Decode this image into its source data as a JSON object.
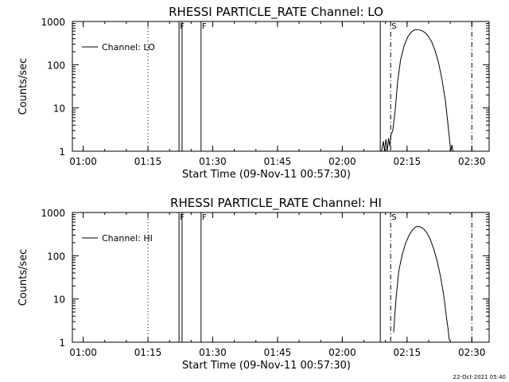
{
  "footer": {
    "timestamp": "22-Oct-2021 05:40"
  },
  "chart_data": [
    {
      "type": "line",
      "title": "RHESSI PARTICLE_RATE Channel: LO",
      "xlabel": "Start Time (09-Nov-11 00:57:30)",
      "ylabel": "Counts/sec",
      "x_unit": "minutes since 00:57:30",
      "xlim": [
        0,
        96.5
      ],
      "ylim": [
        1,
        1000
      ],
      "yscale": "log",
      "xticks": [
        {
          "label": "01:00",
          "value": 2.5
        },
        {
          "label": "01:15",
          "value": 17.5
        },
        {
          "label": "01:30",
          "value": 32.5
        },
        {
          "label": "01:45",
          "value": 47.5
        },
        {
          "label": "02:00",
          "value": 62.5
        },
        {
          "label": "02:15",
          "value": 77.5
        },
        {
          "label": "02:30",
          "value": 92.5
        }
      ],
      "yticks": [
        {
          "label": "1000",
          "value": 1000
        },
        {
          "label": "100",
          "value": 100
        },
        {
          "label": "10",
          "value": 10
        },
        {
          "label": "1",
          "value": 1
        }
      ],
      "legend": {
        "label": "Channel: LO",
        "position": "top-left"
      },
      "markers": [
        {
          "x": 17.5,
          "style": "dotted",
          "label": ""
        },
        {
          "x": 24.7,
          "style": "solid",
          "label": "F"
        },
        {
          "x": 25.4,
          "style": "solid",
          "label": ""
        },
        {
          "x": 29.8,
          "style": "solid",
          "label": "F"
        },
        {
          "x": 71.3,
          "style": "solid",
          "label": ""
        },
        {
          "x": 73.7,
          "style": "dashdot",
          "label": "S"
        },
        {
          "x": 92.5,
          "style": "dashdot",
          "label": ""
        }
      ],
      "series": [
        {
          "name": "Channel: LO",
          "points": [
            [
              71.6,
              1.0
            ],
            [
              72.0,
              1.7
            ],
            [
              72.3,
              1.0
            ],
            [
              72.6,
              1.9
            ],
            [
              72.9,
              1.0
            ],
            [
              73.2,
              2.0
            ],
            [
              73.5,
              1.3
            ],
            [
              73.8,
              2.4
            ],
            [
              74.2,
              3.0
            ],
            [
              74.8,
              10
            ],
            [
              75.3,
              40
            ],
            [
              76.0,
              130
            ],
            [
              76.8,
              270
            ],
            [
              77.6,
              430
            ],
            [
              78.4,
              560
            ],
            [
              79.2,
              640
            ],
            [
              80.0,
              650
            ],
            [
              80.8,
              620
            ],
            [
              81.6,
              560
            ],
            [
              82.4,
              460
            ],
            [
              83.2,
              340
            ],
            [
              84.0,
              210
            ],
            [
              84.8,
              110
            ],
            [
              85.6,
              45
            ],
            [
              86.4,
              14
            ],
            [
              87.0,
              4
            ],
            [
              87.4,
              1.6
            ],
            [
              87.6,
              1.0
            ],
            [
              87.9,
              1.4
            ],
            [
              88.1,
              1.0
            ]
          ]
        }
      ]
    },
    {
      "type": "line",
      "title": "RHESSI PARTICLE_RATE Channel: HI",
      "xlabel": "Start Time (09-Nov-11 00:57:30)",
      "ylabel": "Counts/sec",
      "x_unit": "minutes since 00:57:30",
      "xlim": [
        0,
        96.5
      ],
      "ylim": [
        1,
        1000
      ],
      "yscale": "log",
      "xticks": [
        {
          "label": "01:00",
          "value": 2.5
        },
        {
          "label": "01:15",
          "value": 17.5
        },
        {
          "label": "01:30",
          "value": 32.5
        },
        {
          "label": "01:45",
          "value": 47.5
        },
        {
          "label": "02:00",
          "value": 62.5
        },
        {
          "label": "02:15",
          "value": 77.5
        },
        {
          "label": "02:30",
          "value": 92.5
        }
      ],
      "yticks": [
        {
          "label": "1000",
          "value": 1000
        },
        {
          "label": "100",
          "value": 100
        },
        {
          "label": "10",
          "value": 10
        },
        {
          "label": "1",
          "value": 1
        }
      ],
      "legend": {
        "label": "Channel: HI",
        "position": "top-left"
      },
      "markers": [
        {
          "x": 17.5,
          "style": "dotted",
          "label": ""
        },
        {
          "x": 24.7,
          "style": "solid",
          "label": "F"
        },
        {
          "x": 25.4,
          "style": "solid",
          "label": ""
        },
        {
          "x": 29.8,
          "style": "solid",
          "label": "F"
        },
        {
          "x": 71.3,
          "style": "solid",
          "label": ""
        },
        {
          "x": 73.7,
          "style": "dashdot",
          "label": "S"
        },
        {
          "x": 92.5,
          "style": "dashdot",
          "label": ""
        }
      ],
      "series": [
        {
          "name": "Channel: HI",
          "points": [
            [
              74.4,
              1.7
            ],
            [
              74.6,
              3.5
            ],
            [
              75.0,
              12
            ],
            [
              75.6,
              45
            ],
            [
              76.4,
              110
            ],
            [
              77.2,
              200
            ],
            [
              78.0,
              300
            ],
            [
              78.8,
              400
            ],
            [
              79.6,
              470
            ],
            [
              80.4,
              470
            ],
            [
              81.2,
              430
            ],
            [
              82.0,
              350
            ],
            [
              82.8,
              250
            ],
            [
              83.6,
              150
            ],
            [
              84.4,
              80
            ],
            [
              85.2,
              35
            ],
            [
              86.0,
              12
            ],
            [
              86.6,
              4
            ],
            [
              87.0,
              2
            ],
            [
              87.3,
              1.1
            ]
          ]
        }
      ]
    }
  ]
}
